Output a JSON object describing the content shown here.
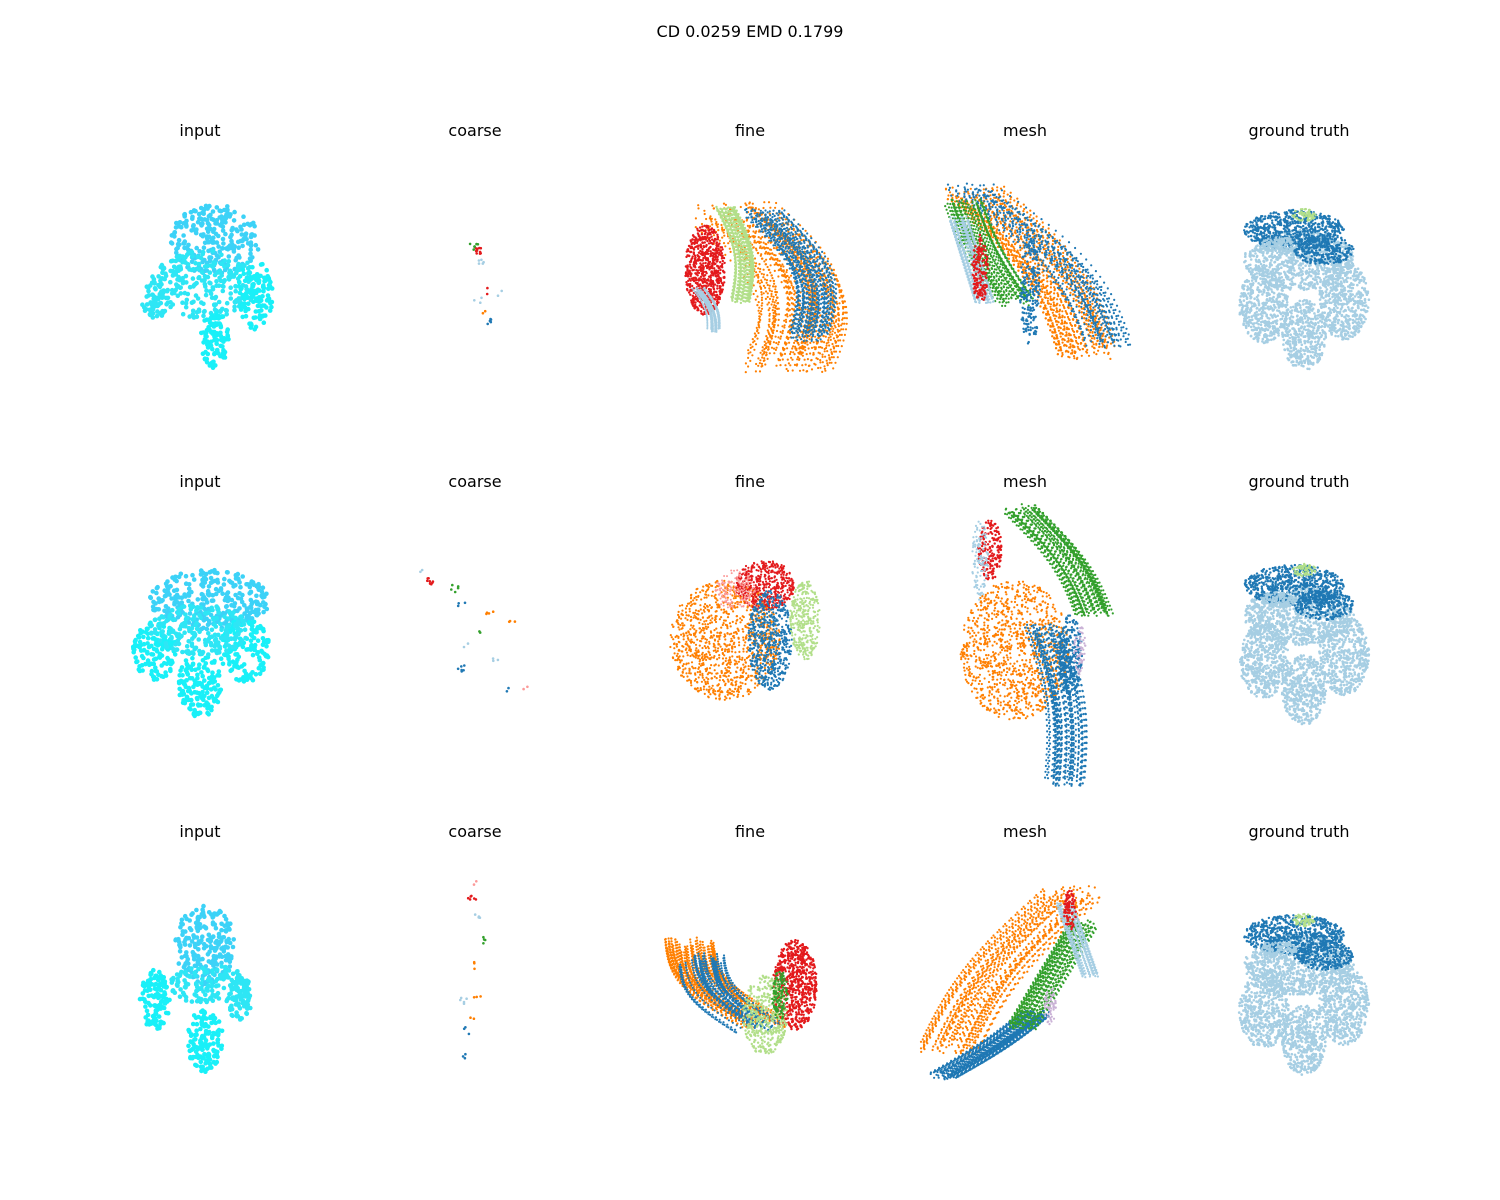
{
  "figure": {
    "title": "CD 0.0259  EMD 0.1799",
    "rows": [
      {
        "panels": [
          {
            "title": "input",
            "kind": "input"
          },
          {
            "title": "coarse",
            "kind": "coarse"
          },
          {
            "title": "fine",
            "kind": "fine"
          },
          {
            "title": "mesh",
            "kind": "mesh"
          },
          {
            "title": "ground truth",
            "kind": "gt"
          }
        ]
      },
      {
        "panels": [
          {
            "title": "input",
            "kind": "input"
          },
          {
            "title": "coarse",
            "kind": "coarse"
          },
          {
            "title": "fine",
            "kind": "fine"
          },
          {
            "title": "mesh",
            "kind": "mesh"
          },
          {
            "title": "ground truth",
            "kind": "gt"
          }
        ]
      },
      {
        "panels": [
          {
            "title": "input",
            "kind": "input"
          },
          {
            "title": "coarse",
            "kind": "coarse"
          },
          {
            "title": "fine",
            "kind": "fine"
          },
          {
            "title": "mesh",
            "kind": "mesh"
          },
          {
            "title": "ground truth",
            "kind": "gt"
          }
        ]
      }
    ]
  },
  "colors": {
    "input": [
      "#2ee6f5",
      "#3cd2f7",
      "#19f0f8"
    ],
    "palette": [
      "#a6cee3",
      "#1f78b4",
      "#b2df8a",
      "#33a02c",
      "#fb9a99",
      "#e31a1c",
      "#ff7f00",
      "#cab2d6"
    ],
    "gt_body": "#a6cee3",
    "gt_top": "#1f78b4",
    "gt_accent": "#b2df8a"
  }
}
